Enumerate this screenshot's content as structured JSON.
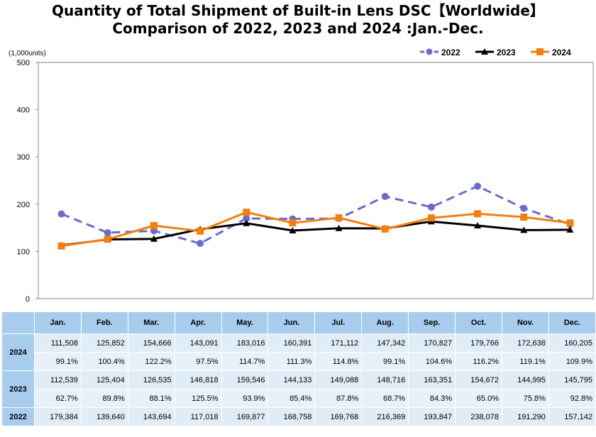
{
  "title_line1": "Quantity of Total Shipment of Built-in Lens DSC【Worldwide】",
  "title_line2": "Comparison of 2022, 2023 and 2024 :Jan.-Dec.",
  "chart_data": {
    "type": "line",
    "title": "Quantity of Total Shipment of Built-in Lens DSC【Worldwide】 Comparison of 2022, 2023 and 2024 :Jan.-Dec.",
    "ylabel": "(1,000units)",
    "ylim": [
      0,
      500
    ],
    "yticks": [
      0,
      100,
      200,
      300,
      400,
      500
    ],
    "grid": false,
    "legend_position": "top-right",
    "categories": [
      "Jan.",
      "Feb.",
      "Mar.",
      "Apr.",
      "May.",
      "Jun.",
      "Jul.",
      "Aug.",
      "Sep.",
      "Oct.",
      "Nov.",
      "Dec."
    ],
    "series": [
      {
        "name": "2022",
        "color": "#6b6bc9",
        "style": "dashed",
        "marker": "circle",
        "values": [
          179.384,
          139.64,
          143.694,
          117.018,
          169.877,
          168.758,
          169.768,
          216.369,
          193.847,
          238.078,
          191.29,
          157.142
        ]
      },
      {
        "name": "2023",
        "color": "#000000",
        "style": "solid",
        "marker": "triangle",
        "values": [
          112.539,
          125.404,
          126.535,
          146.818,
          159.546,
          144.133,
          149.088,
          148.716,
          163.351,
          154.672,
          144.995,
          145.795
        ]
      },
      {
        "name": "2024",
        "color": "#f57e12",
        "style": "solid",
        "marker": "square",
        "values": [
          111.508,
          125.852,
          154.666,
          143.091,
          183.016,
          160.391,
          171.112,
          147.342,
          170.827,
          179.766,
          172.638,
          160.205
        ]
      }
    ]
  },
  "table": {
    "months": [
      "Jan.",
      "Feb.",
      "Mar.",
      "Apr.",
      "May.",
      "Jun.",
      "Jul.",
      "Aug.",
      "Sep.",
      "Oct.",
      "Nov.",
      "Dec."
    ],
    "rows": [
      {
        "year": "2024",
        "values": [
          "111,508",
          "125,852",
          "154,666",
          "143,091",
          "183,016",
          "160,391",
          "171,112",
          "147,342",
          "170,827",
          "179,766",
          "172,638",
          "160,205"
        ],
        "pct": [
          "99.1%",
          "100.4%",
          "122.2%",
          "97.5%",
          "114.7%",
          "111.3%",
          "114.8%",
          "99.1%",
          "104.6%",
          "116.2%",
          "119.1%",
          "109.9%"
        ]
      },
      {
        "year": "2023",
        "values": [
          "112,539",
          "125,404",
          "126,535",
          "146,818",
          "159,546",
          "144,133",
          "149,088",
          "148,716",
          "163,351",
          "154,672",
          "144,995",
          "145,795"
        ],
        "pct": [
          "62.7%",
          "89.8%",
          "88.1%",
          "125.5%",
          "93.9%",
          "85.4%",
          "87.8%",
          "68.7%",
          "84.3%",
          "65.0%",
          "75.8%",
          "92.8%"
        ]
      },
      {
        "year": "2022",
        "values": [
          "179,384",
          "139,640",
          "143,694",
          "117,018",
          "169,877",
          "168,758",
          "169,768",
          "216,369",
          "193,847",
          "238,078",
          "191,290",
          "157,142"
        ],
        "pct": null
      }
    ]
  }
}
